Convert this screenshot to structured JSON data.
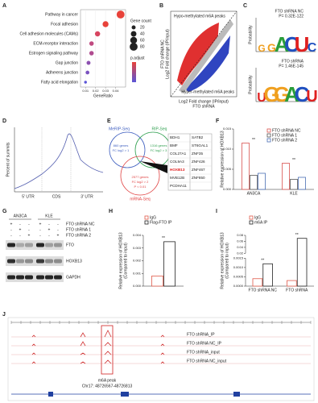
{
  "panel_letters": [
    "A",
    "B",
    "C",
    "D",
    "E",
    "F",
    "G",
    "H",
    "I",
    "J"
  ],
  "chart_data": [
    {
      "type": "dot",
      "categories": [
        "Pathway in cancer",
        "Focal adhesion",
        "Cell adhesion molecules (CAMs)",
        "ECM-receptor interaction",
        "Estrogen signaling pathway",
        "Gap junction",
        "Adherens junction",
        "Fatty acid elongation"
      ],
      "values": [
        0.045,
        0.03,
        0.022,
        0.016,
        0.016,
        0.013,
        0.012,
        0.01
      ],
      "sizes": [
        80,
        45,
        35,
        25,
        25,
        20,
        18,
        10
      ],
      "colors": [
        "#e8423a",
        "#e8423a",
        "#d84560",
        "#c04a80",
        "#b04c90",
        "#8c50b0",
        "#7a52c0",
        "#5a55d8"
      ],
      "xlabel": "GeneRatio",
      "xlim": [
        0.005,
        0.05
      ],
      "xticks": [
        0.01,
        0.02,
        0.03,
        0.04
      ],
      "size_title": "Gene count",
      "size_ticks": [
        20,
        40,
        60,
        80
      ],
      "color_title": "p.adjust"
    },
    {
      "type": "bar",
      "ylabel": [
        "Relative expression of HOXB13"
      ],
      "categories": [
        "AN3CA",
        "KLE"
      ],
      "series": [
        {
          "name": "FTO shRNA NC",
          "color": "#d9534f",
          "values": [
            0.0115,
            0.0065
          ]
        },
        {
          "name": "FTO shRNA 1",
          "color": "#555555",
          "values": [
            0.0035,
            0.0025
          ]
        },
        {
          "name": "FTO shRNA 2",
          "color": "#4a6fb5",
          "values": [
            0.004,
            0.003
          ]
        }
      ],
      "ylim": [
        0,
        0.015
      ],
      "yticks": [
        {
          "value": 0,
          "label": "0.000"
        },
        {
          "value": 0.005,
          "label": "0.005"
        },
        {
          "value": 0.01,
          "label": "0.010"
        },
        {
          "value": 0.015,
          "label": "0.015"
        }
      ],
      "significance": "**"
    },
    {
      "type": "bar",
      "ylabel": [
        "Relative expression of HOXB13",
        "(Compared to input)"
      ],
      "categories": [
        null
      ],
      "series": [
        {
          "name": "IgG",
          "color": "#e05a4a",
          "values": [
            0.0008
          ]
        },
        {
          "name": "Flag-FTO IP",
          "color": "#222222",
          "values": [
            0.0035
          ]
        }
      ],
      "ylim": [
        0,
        0.004
      ],
      "yticks": [
        {
          "value": 0,
          "label": "0.000"
        },
        {
          "value": 0.001,
          "label": "0.001"
        },
        {
          "value": 0.002,
          "label": "0.002"
        },
        {
          "value": 0.003,
          "label": "0.003"
        },
        {
          "value": 0.004,
          "label": "0.004"
        }
      ],
      "significance": "**"
    },
    {
      "type": "bar",
      "ylabel": [
        "Relative expression of HOXB13",
        "(Compared to input)"
      ],
      "categories": [
        "FTO shRNA NC",
        "FTO shRNA"
      ],
      "series": [
        {
          "name": "IgG",
          "color": "#e05a4a",
          "values": [
            0.0004,
            0.0003
          ]
        },
        {
          "name": "m6A IP",
          "color": "#222222",
          "values": [
            0.0012,
            0.07
          ]
        }
      ],
      "ylim": [
        0,
        0.08
      ],
      "ybreak": [
        0.0015,
        0.02
      ],
      "yticks": [
        {
          "value": 0,
          "label": "0.0000"
        },
        {
          "value": 0.0005,
          "label": "0.0005"
        },
        {
          "value": 0.001,
          "label": "0.0010"
        },
        {
          "value": 0.0015,
          "label": "0.0015"
        },
        0.02,
        0.04,
        0.06,
        0.08
      ],
      "significance": "**"
    }
  ],
  "panel_b": {
    "top_label": "Hypo-methylated m6A peaks",
    "bottom_label": "Hyper-methylated m6A peaks",
    "ylabel": [
      "FTO shRNA NC",
      "Log2 Fold change (IP/input)"
    ],
    "xlabel": [
      "Log2 Fold change (IP/input)",
      "FTO shRNA"
    ]
  },
  "panel_c": {
    "ylabel": "Probability",
    "logos": [
      {
        "title": "FTO shRNA NC",
        "p": "P= 0.32E-122",
        "letters": [
          "G",
          "G",
          "A",
          "C",
          "U",
          "C"
        ]
      },
      {
        "title": "FTO shRNA",
        "p": "P= 1.46E-145",
        "letters": [
          "U",
          "G",
          "G",
          "A",
          "C",
          "U"
        ]
      }
    ]
  },
  "panel_d": {
    "ylabel": "Percent of summits",
    "regions": [
      "5' UTR",
      "CDS",
      "3' UTR"
    ]
  },
  "panel_e": {
    "merip": "MeRIP-Seq",
    "rip": "RIP-Seq",
    "mrna": "mRNA-Seq",
    "merip_genes": [
      "860 genes",
      "FC log2 > 1"
    ],
    "rip_genes": [
      "1316 genes",
      "FC log2 > 3"
    ],
    "mrna_genes": [
      "2577 genes",
      "FC log2 > 2",
      "P < 0.01"
    ],
    "genes": [
      [
        "BDH1",
        "SATB2"
      ],
      [
        "BMF",
        "ST6GAL1"
      ],
      [
        "COL27A1",
        "ZNF35"
      ],
      [
        "COL9A3",
        "ZNF426"
      ],
      [
        "HOXB13",
        "ZNF467"
      ],
      [
        "MVB12B",
        "ZNF850"
      ],
      [
        "PCDHA11"
      ]
    ]
  },
  "panel_g": {
    "cell_lines": [
      "AN3CA",
      "KLE"
    ],
    "rows": [
      {
        "label": "FTO shRNA NC",
        "signs": [
          "+",
          "-",
          "-",
          "+",
          "-",
          "-"
        ]
      },
      {
        "label": "FTO shRNA 1",
        "signs": [
          "-",
          "+",
          "-",
          "-",
          "+",
          "-"
        ]
      },
      {
        "label": "FTO shRNA 2",
        "signs": [
          "-",
          "-",
          "+",
          "-",
          "-",
          "+"
        ]
      }
    ],
    "proteins": [
      "FTO",
      "HOXB13",
      "GAPDH"
    ]
  },
  "panel_j": {
    "tracks": [
      "FTO shRNA_IP",
      "FTO shRNA NC_IP",
      "FTO shRNA_input",
      "FTO shRNA NC_input"
    ],
    "peak": "m6A peak",
    "locus": "Chr17: 48726567-48726813"
  }
}
